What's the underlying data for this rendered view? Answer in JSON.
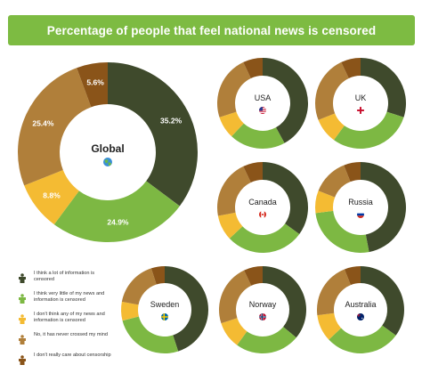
{
  "title": "Percentage of people that feel national news is censored",
  "colors": {
    "title_bg": "#7dbb42",
    "categories": [
      "#3f4a2c",
      "#7db843",
      "#f4bb33",
      "#b07f3a",
      "#8a5419"
    ]
  },
  "legend": [
    {
      "label": "I think a lot of information is censored",
      "icon": "person-icon"
    },
    {
      "label": "I think very little of my news and information is censored",
      "icon": "person-icon"
    },
    {
      "label": "I don't think any of my news and information is censored",
      "icon": "person-icon"
    },
    {
      "label": "No, it has never crossed my mind",
      "icon": "person-icon"
    },
    {
      "label": "I don't really care about censorship",
      "icon": "person-icon"
    }
  ],
  "chart_data": [
    {
      "type": "pie",
      "variant": "donut",
      "name": "Global",
      "icon": "globe-icon",
      "values": [
        35.2,
        24.9,
        8.8,
        25.4,
        5.6
      ],
      "labels": [
        "35.2%",
        "24.9%",
        "8.8%",
        "25.4%",
        "5.6%"
      ]
    },
    {
      "type": "pie",
      "variant": "donut",
      "name": "USA",
      "icon": "usa-flag-icon",
      "values": [
        42,
        20,
        8,
        23,
        7
      ]
    },
    {
      "type": "pie",
      "variant": "donut",
      "name": "UK",
      "icon": "uk-flag-icon",
      "values": [
        30,
        30,
        9,
        24,
        7
      ]
    },
    {
      "type": "pie",
      "variant": "donut",
      "name": "Canada",
      "icon": "canada-flag-icon",
      "values": [
        35,
        28,
        9,
        21,
        7
      ]
    },
    {
      "type": "pie",
      "variant": "donut",
      "name": "Russia",
      "icon": "russia-flag-icon",
      "values": [
        47,
        26,
        8,
        13,
        6
      ]
    },
    {
      "type": "pie",
      "variant": "donut",
      "name": "Sweden",
      "icon": "sweden-flag-icon",
      "values": [
        45,
        26,
        7,
        17,
        5
      ]
    },
    {
      "type": "pie",
      "variant": "donut",
      "name": "Norway",
      "icon": "norway-flag-icon",
      "values": [
        36,
        24,
        10,
        23,
        7
      ]
    },
    {
      "type": "pie",
      "variant": "donut",
      "name": "Australia",
      "icon": "australia-flag-icon",
      "values": [
        35,
        28,
        10,
        21,
        6
      ]
    }
  ]
}
